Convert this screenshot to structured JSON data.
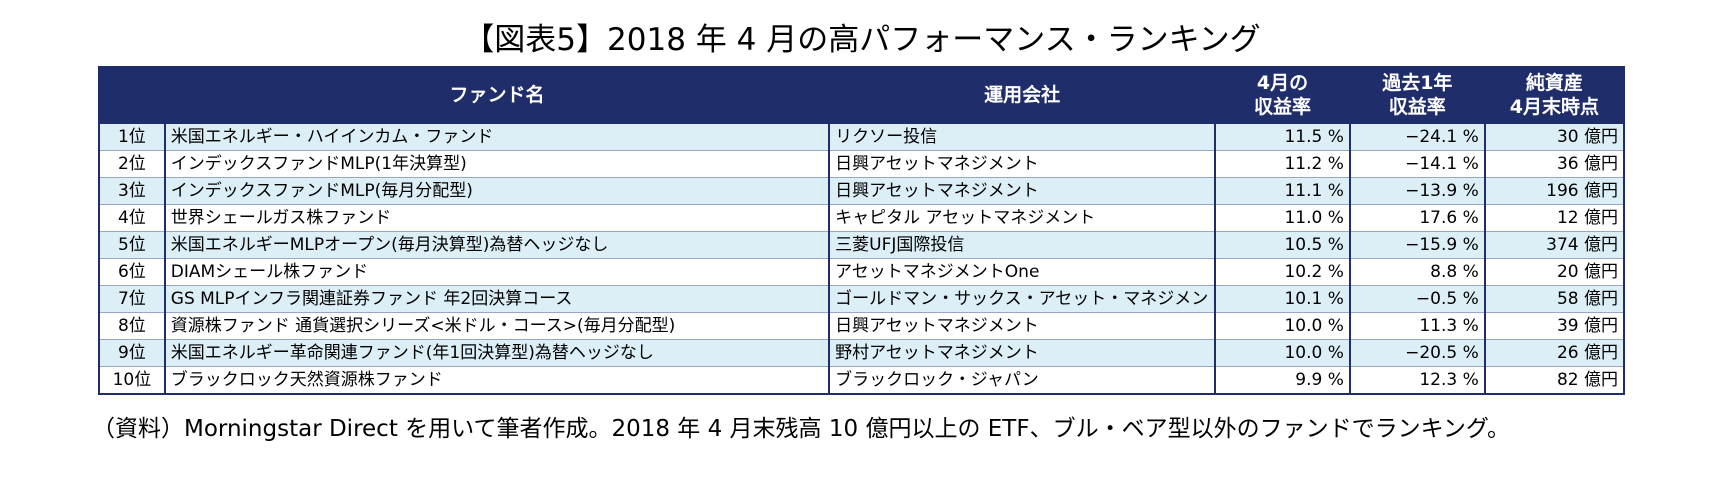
{
  "title": "【図表5】2018 年 4 月の高パフォーマンス・ランキング",
  "table": {
    "headers": {
      "rank": "",
      "fund_name": "ファンド名",
      "company": "運用会社",
      "return_april_l1": "4月の",
      "return_april_l2": "収益率",
      "return_1y_l1": "過去1年",
      "return_1y_l2": "収益率",
      "aum_l1": "純資産",
      "aum_l2": "4月末時点"
    },
    "rows": [
      {
        "rank": "1位",
        "fund": "米国エネルギー・ハイインカム・ファンド",
        "company": "リクソー投信",
        "april": "11.5 %",
        "year": "−24.1 %",
        "aum": "30 億円"
      },
      {
        "rank": "2位",
        "fund": "インデックスファンドMLP(1年決算型)",
        "company": "日興アセットマネジメント",
        "april": "11.2 %",
        "year": "−14.1 %",
        "aum": "36 億円"
      },
      {
        "rank": "3位",
        "fund": "インデックスファンドMLP(毎月分配型)",
        "company": "日興アセットマネジメント",
        "april": "11.1 %",
        "year": "−13.9 %",
        "aum": "196 億円"
      },
      {
        "rank": "4位",
        "fund": "世界シェールガス株ファンド",
        "company": "キャピタル アセットマネジメント",
        "april": "11.0 %",
        "year": "17.6 %",
        "aum": "12 億円"
      },
      {
        "rank": "5位",
        "fund": "米国エネルギーMLPオープン(毎月決算型)為替ヘッジなし",
        "company": "三菱UFJ国際投信",
        "april": "10.5 %",
        "year": "−15.9 %",
        "aum": "374 億円"
      },
      {
        "rank": "6位",
        "fund": "DIAMシェール株ファンド",
        "company": "アセットマネジメントOne",
        "april": "10.2 %",
        "year": "8.8 %",
        "aum": "20 億円"
      },
      {
        "rank": "7位",
        "fund": "GS MLPインフラ関連証券ファンド 年2回決算コース",
        "company": "ゴールドマン・サックス・アセット・マネジメント",
        "april": "10.1 %",
        "year": "−0.5 %",
        "aum": "58 億円"
      },
      {
        "rank": "8位",
        "fund": "資源株ファンド 通貨選択シリーズ<米ドル・コース>(毎月分配型)",
        "company": "日興アセットマネジメント",
        "april": "10.0 %",
        "year": "11.3 %",
        "aum": "39 億円"
      },
      {
        "rank": "9位",
        "fund": "米国エネルギー革命関連ファンド(年1回決算型)為替ヘッジなし",
        "company": "野村アセットマネジメント",
        "april": "10.0 %",
        "year": "−20.5 %",
        "aum": "26 億円"
      },
      {
        "rank": "10位",
        "fund": "ブラックロック天然資源株ファンド",
        "company": "ブラックロック・ジャパン",
        "april": "9.9 %",
        "year": "12.3 %",
        "aum": "82 億円"
      }
    ]
  },
  "source": "（資料）Morningstar Direct を用いて筆者作成。2018 年 4 月末残高 10 億円以上の ETF、ブル・ベア型以外のファンドでランキング。",
  "colors": {
    "header_bg": "#1f2d6b",
    "row_alt_bg": "#dceef6"
  }
}
